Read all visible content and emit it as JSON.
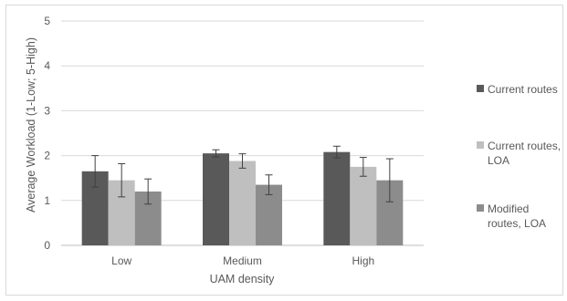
{
  "chart_data": {
    "type": "bar",
    "title": "",
    "xlabel": "UAM density",
    "ylabel": "Average Workload (1-Low; 5-High)",
    "categories": [
      "Low",
      "Medium",
      "High"
    ],
    "ylim": [
      0,
      5
    ],
    "yticks": [
      "0",
      "1",
      "2",
      "3",
      "4",
      "5"
    ],
    "grid": true,
    "legend_position": "right",
    "series": [
      {
        "name": "Current routes",
        "color": "#595959",
        "values": [
          1.65,
          2.05,
          2.08
        ],
        "error": [
          0.35,
          0.08,
          0.13
        ]
      },
      {
        "name": "Current routes, LOA",
        "color": "#bfbfbf",
        "values": [
          1.45,
          1.88,
          1.75
        ],
        "error": [
          0.37,
          0.16,
          0.21
        ]
      },
      {
        "name": "Modified routes, LOA",
        "color": "#8c8c8c",
        "values": [
          1.2,
          1.35,
          1.45
        ],
        "error": [
          0.28,
          0.22,
          0.48
        ]
      }
    ]
  }
}
